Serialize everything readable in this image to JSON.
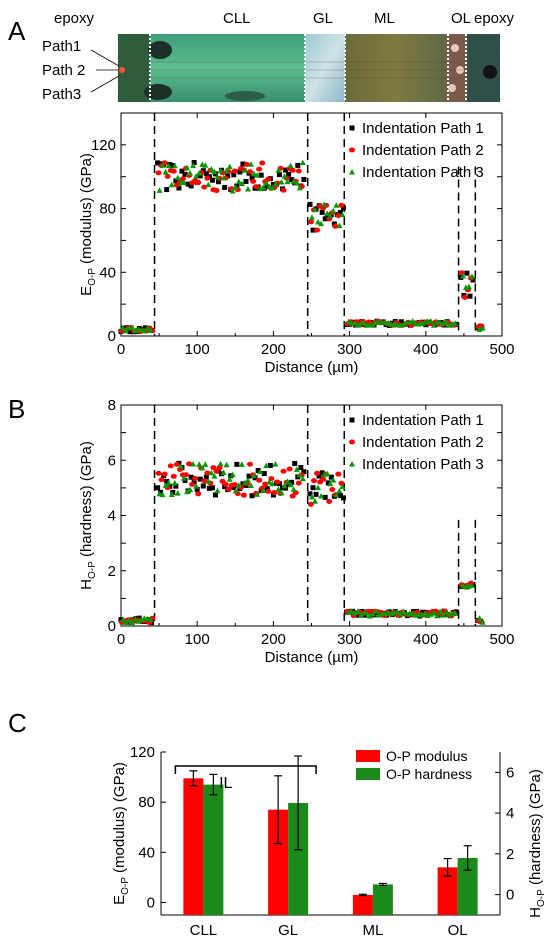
{
  "panels": {
    "a": "A",
    "b": "B",
    "c": "C"
  },
  "micrograph": {
    "region_labels": [
      "epoxy",
      "CLL",
      "GL",
      "ML",
      "OL",
      "epoxy"
    ],
    "path_labels": [
      "Path1",
      "Path 2",
      "Path3"
    ]
  },
  "colors": {
    "path1": "#000000",
    "path2": "#ff0000",
    "path3": "#009900",
    "modulus_bar": "#ff0000",
    "hardness_bar": "#1a8a1a"
  },
  "chart_data": [
    {
      "type": "scatter",
      "panel": "A",
      "xlabel": "Distance (µm)",
      "ylabel_main": "E",
      "ylabel_sub": "O-P",
      "ylabel_rest": " (modulus)  (GPa)",
      "xlim": [
        0,
        500
      ],
      "ylim": [
        0,
        140
      ],
      "xticks": [
        0,
        100,
        200,
        300,
        400,
        500
      ],
      "yticks": [
        0,
        20,
        40,
        60,
        80,
        100,
        120
      ],
      "yticklabels": [
        0,
        40,
        80,
        120
      ],
      "boundaries": [
        44,
        245,
        293,
        443,
        465
      ],
      "legend": [
        "Indentation Path 1",
        "Indentation Path 2",
        "Indentation Path 3"
      ],
      "legend_position": "top-right",
      "regions": [
        {
          "from": 0,
          "to": 42,
          "level": 4
        },
        {
          "from": 48,
          "to": 240,
          "level": 100
        },
        {
          "from": 248,
          "to": 292,
          "level": 75
        },
        {
          "from": 296,
          "to": 440,
          "level": 8
        },
        {
          "from": 446,
          "to": 462,
          "level": 32
        },
        {
          "from": 468,
          "to": 475,
          "level": 5
        }
      ]
    },
    {
      "type": "scatter",
      "panel": "B",
      "xlabel": "Distance (µm)",
      "ylabel_main": "H",
      "ylabel_sub": "O-P",
      "ylabel_rest": " (hardness)  (GPa)",
      "xlim": [
        0,
        500
      ],
      "ylim": [
        0,
        8
      ],
      "xticks": [
        0,
        100,
        200,
        300,
        400,
        500
      ],
      "yticks": [
        0,
        1,
        2,
        3,
        4,
        5,
        6,
        7,
        8
      ],
      "yticklabels": [
        0,
        2,
        4,
        6,
        8
      ],
      "boundaries": [
        44,
        245,
        293,
        443,
        465
      ],
      "legend": [
        "Indentation Path 1",
        "Indentation Path 2",
        "Indentation Path 3"
      ],
      "legend_position": "top-right",
      "regions": [
        {
          "from": 0,
          "to": 42,
          "level": 0.2
        },
        {
          "from": 48,
          "to": 240,
          "level": 5.3
        },
        {
          "from": 248,
          "to": 292,
          "level": 5.0
        },
        {
          "from": 296,
          "to": 440,
          "level": 0.45
        },
        {
          "from": 446,
          "to": 462,
          "level": 1.5
        },
        {
          "from": 468,
          "to": 475,
          "level": 0.2
        }
      ]
    },
    {
      "type": "bar",
      "panel": "C",
      "categories": [
        "CLL",
        "GL",
        "ML",
        "OL"
      ],
      "ylabel_left_main": "E",
      "ylabel_left_sub": "O-P",
      "ylabel_left_rest": " (modulus) (GPa)",
      "ylabel_right_main": "H",
      "ylabel_right_sub": "O-P",
      "ylabel_right_rest": " (hardness)  (GPa)",
      "ylim_left": [
        -10,
        120
      ],
      "ylim_right": [
        -1,
        7
      ],
      "yticks_left": [
        0,
        40,
        80,
        120
      ],
      "yticks_right": [
        0,
        2,
        4,
        6
      ],
      "series": [
        {
          "name": "O-P modulus",
          "axis": "left",
          "values": [
            99,
            74,
            6,
            28
          ],
          "errors": [
            6,
            27,
            0.5,
            7
          ]
        },
        {
          "name": "O-P hardness",
          "axis": "right",
          "values": [
            5.4,
            4.5,
            0.5,
            1.8
          ],
          "errors": [
            0.5,
            2.3,
            0.05,
            0.6
          ]
        }
      ],
      "bracket_label": "IL",
      "legend_position": "top-right"
    }
  ]
}
